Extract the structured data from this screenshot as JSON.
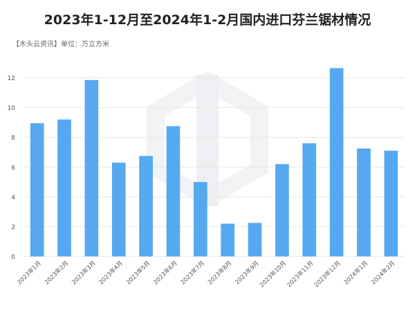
{
  "title": "2023年1-12月至2024年1-2月国内进口芬兰锯材情况",
  "subtitle": "【木头云资讯】单位：万立方米",
  "colors": {
    "bar": "#56A9F1",
    "grid": "#E6E6E6",
    "axis_text": "#555555",
    "watermark": "#F1F3F5"
  },
  "chart_data": {
    "type": "bar",
    "title": "2023年1-12月至2024年1-2月国内进口芬兰锯材情况",
    "categories": [
      "2023年1月",
      "2023年2月",
      "2023年3月",
      "2023年4月",
      "2023年5月",
      "2023年6月",
      "2023年7月",
      "2023年8月",
      "2023年9月",
      "2023年10月",
      "2023年11月",
      "2023年12月",
      "2024年1月",
      "2024年2月"
    ],
    "values": [
      8.95,
      9.2,
      11.85,
      6.3,
      6.75,
      8.75,
      5.0,
      2.2,
      2.25,
      6.2,
      7.6,
      12.65,
      7.25,
      7.1
    ],
    "ylim": [
      0,
      13
    ],
    "yticks": [
      0,
      2,
      4,
      6,
      8,
      10,
      12
    ],
    "grid": true,
    "xlabel": "",
    "ylabel": ""
  }
}
